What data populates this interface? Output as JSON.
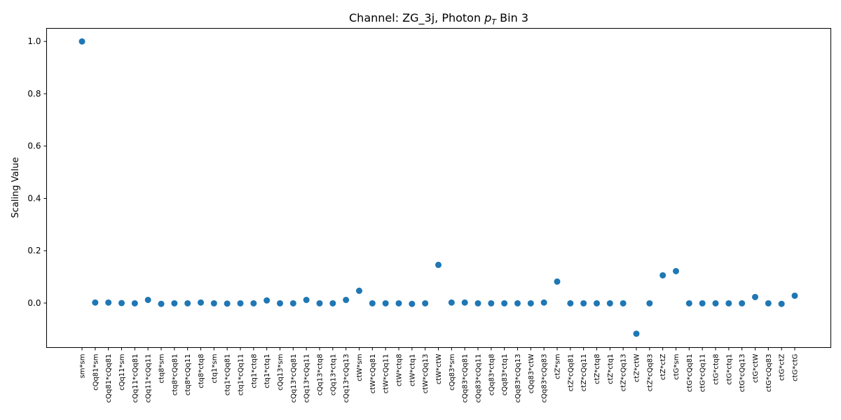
{
  "chart_data": {
    "type": "scatter",
    "title": {
      "prefix": "Channel: ZG_3j, Photon ",
      "p": "p",
      "sub": "T",
      "suffix": " Bin 3"
    },
    "xlabel": "",
    "ylabel": "Scaling Value",
    "ylim": [
      -0.17,
      1.05
    ],
    "yticks": [
      "0.0",
      "0.2",
      "0.4",
      "0.6",
      "0.8",
      "1.0"
    ],
    "ytick_values": [
      0.0,
      0.2,
      0.4,
      0.6,
      0.8,
      1.0
    ],
    "grid": false,
    "marker_color": "#1f77b4",
    "categories": [
      "sm*sm",
      "cQq81*sm",
      "cQq81*cQq81",
      "cQq11*sm",
      "cQq11*cQq81",
      "cQq11*cQq11",
      "ctq8*sm",
      "ctq8*cQq81",
      "ctq8*cQq11",
      "ctq8*ctq8",
      "ctq1*sm",
      "ctq1*cQq81",
      "ctq1*cQq11",
      "ctq1*ctq8",
      "ctq1*ctq1",
      "cQq13*sm",
      "cQq13*cQq81",
      "cQq13*cQq11",
      "cQq13*ctq8",
      "cQq13*ctq1",
      "cQq13*cQq13",
      "ctW*sm",
      "ctW*cQq81",
      "ctW*cQq11",
      "ctW*ctq8",
      "ctW*ctq1",
      "ctW*cQq13",
      "ctW*ctW",
      "cQq83*sm",
      "cQq83*cQq81",
      "cQq83*cQq11",
      "cQq83*ctq8",
      "cQq83*ctq1",
      "cQq83*cQq13",
      "cQq83*ctW",
      "cQq83*cQq83",
      "ctZ*sm",
      "ctZ*cQq81",
      "ctZ*cQq11",
      "ctZ*ctq8",
      "ctZ*ctq1",
      "ctZ*cQq13",
      "ctZ*ctW",
      "ctZ*cQq83",
      "ctZ*ctZ",
      "ctG*sm",
      "ctG*cQq81",
      "ctG*cQq11",
      "ctG*ctq8",
      "ctG*ctq1",
      "ctG*cQq13",
      "ctG*ctW",
      "ctG*cQq83",
      "ctG*ctZ",
      "ctG*ctG"
    ],
    "values": [
      1.0,
      0.002,
      0.002,
      0.0,
      -0.001,
      0.012,
      -0.003,
      -0.001,
      -0.001,
      0.002,
      -0.001,
      -0.002,
      -0.001,
      -0.001,
      0.01,
      -0.001,
      -0.001,
      0.012,
      -0.001,
      -0.001,
      0.012,
      0.047,
      -0.001,
      -0.001,
      -0.001,
      -0.003,
      -0.001,
      0.146,
      0.002,
      0.002,
      -0.001,
      -0.001,
      -0.001,
      -0.001,
      -0.001,
      0.002,
      0.082,
      -0.001,
      -0.001,
      -0.001,
      -0.001,
      -0.001,
      -0.117,
      -0.001,
      0.106,
      0.122,
      -0.001,
      -0.001,
      -0.001,
      -0.001,
      -0.001,
      0.023,
      -0.001,
      -0.003,
      0.028
    ]
  }
}
